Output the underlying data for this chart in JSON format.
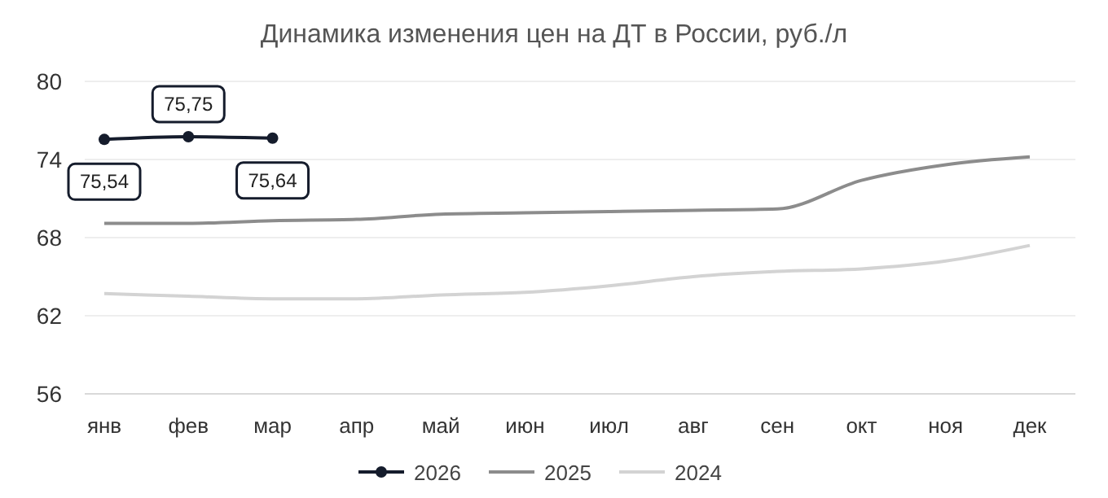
{
  "chart_data": {
    "type": "line",
    "title": "Динамика изменения цен на ДТ в России, руб./л",
    "categories": [
      "янв",
      "фев",
      "мар",
      "апр",
      "май",
      "июн",
      "июл",
      "авг",
      "сен",
      "окт",
      "ноя",
      "дек"
    ],
    "series": [
      {
        "name": "2026",
        "color": "#151c2c",
        "marker": "circle",
        "values": [
          75.54,
          75.75,
          75.64,
          null,
          null,
          null,
          null,
          null,
          null,
          null,
          null,
          null
        ],
        "value_labels": [
          "75,54",
          "75,75",
          "75,64",
          null,
          null,
          null,
          null,
          null,
          null,
          null,
          null,
          null
        ]
      },
      {
        "name": "2025",
        "color": "#8c8c8c",
        "marker": "none",
        "values": [
          69.1,
          69.1,
          69.3,
          69.4,
          69.8,
          69.9,
          70.0,
          70.1,
          70.2,
          72.4,
          73.6,
          74.2
        ]
      },
      {
        "name": "2024",
        "color": "#d3d3d3",
        "marker": "none",
        "values": [
          63.7,
          63.5,
          63.3,
          63.3,
          63.6,
          63.8,
          64.3,
          65.0,
          65.4,
          65.6,
          66.2,
          67.4
        ]
      }
    ],
    "ylim": [
      56,
      80
    ],
    "yticks": [
      56,
      62,
      68,
      74,
      80
    ],
    "grid": "y",
    "legend": "bottom"
  }
}
